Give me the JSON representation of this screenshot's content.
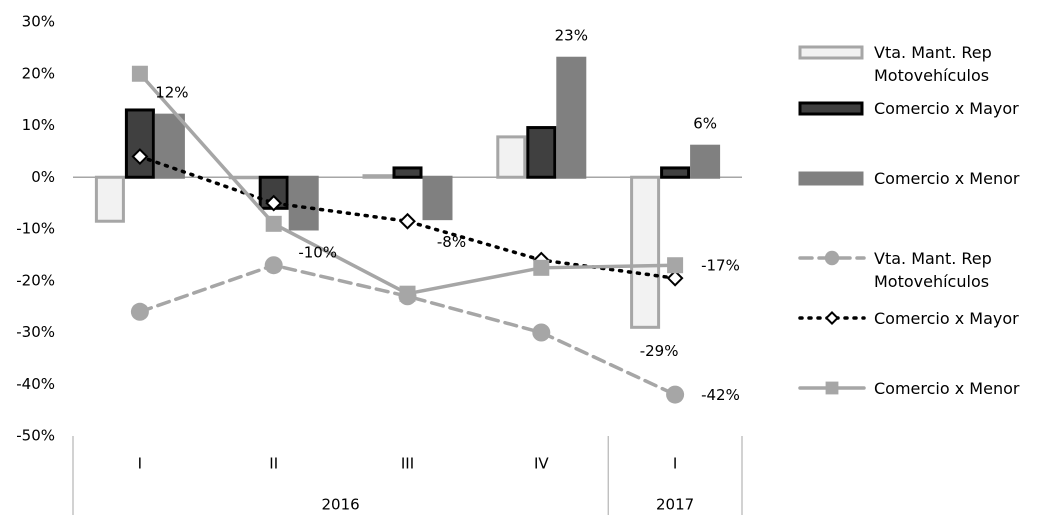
{
  "chart_data": {
    "type": "combo",
    "categories": [
      "I",
      "II",
      "III",
      "IV",
      "I"
    ],
    "x_groups": [
      {
        "label": "2016",
        "count": 4
      },
      {
        "label": "2017",
        "count": 1
      }
    ],
    "ylim": [
      -50,
      30
    ],
    "yticks": [
      {
        "value": -50,
        "label": "-50%"
      },
      {
        "value": -40,
        "label": "-40%"
      },
      {
        "value": -30,
        "label": "-30%"
      },
      {
        "value": -20,
        "label": "-20%"
      },
      {
        "value": -10,
        "label": "-10%"
      },
      {
        "value": 0,
        "label": "0%"
      },
      {
        "value": 10,
        "label": "10%"
      },
      {
        "value": 20,
        "label": "20%"
      },
      {
        "value": 30,
        "label": "30%"
      }
    ],
    "series": [
      {
        "name": "Vta. Mant. Rep Motovehículos",
        "type": "bar",
        "color": "#f2f2f2",
        "stroke": "#a6a6a6",
        "values": [
          -8.5,
          0,
          0.3,
          7.8,
          -29
        ],
        "value_labels": [
          null,
          null,
          null,
          null,
          "-29%"
        ]
      },
      {
        "name": "Comercio x Mayor",
        "type": "bar",
        "color": "#404040",
        "stroke": "#000000",
        "values": [
          13,
          -6,
          1.8,
          9.6,
          1.8
        ]
      },
      {
        "name": "Comercio x Menor",
        "type": "bar",
        "color": "#808080",
        "stroke": "#808080",
        "values": [
          12,
          -10,
          -8,
          23,
          6
        ],
        "value_labels": [
          "12%",
          "-10%",
          "-8%",
          "23%",
          "6%"
        ]
      },
      {
        "name": "Vta. Mant. Rep Motovehículos",
        "type": "line",
        "color": "#a6a6a6",
        "dash": "dash",
        "marker": "circle",
        "values": [
          -26,
          -17,
          -23,
          -30,
          -42
        ],
        "value_labels": [
          null,
          null,
          null,
          null,
          "-42%"
        ]
      },
      {
        "name": "Comercio x Mayor",
        "type": "line",
        "color": "#000000",
        "dash": "dot",
        "marker": "diamond",
        "values": [
          4,
          -5,
          -8.5,
          -16,
          -19.5
        ]
      },
      {
        "name": "Comercio x Menor",
        "type": "line",
        "color": "#a6a6a6",
        "dash": "solid",
        "marker": "square",
        "values": [
          20,
          -9,
          -22.5,
          -17.5,
          -17
        ],
        "value_labels": [
          null,
          null,
          null,
          null,
          "-17%"
        ]
      }
    ]
  }
}
